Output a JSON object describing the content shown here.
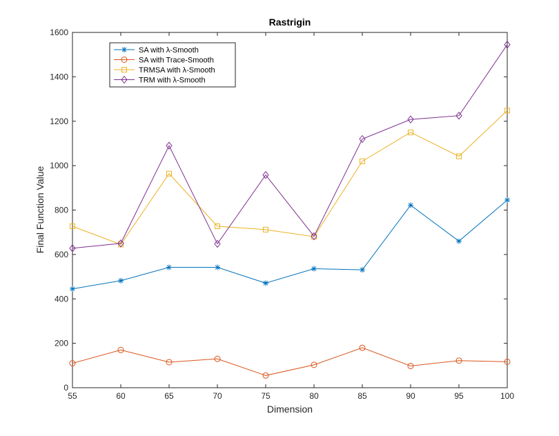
{
  "chart_data": {
    "type": "line",
    "title": "Rastrigin",
    "xlabel": "Dimension",
    "ylabel": "Final Function Value",
    "x": [
      55,
      60,
      65,
      70,
      75,
      80,
      85,
      90,
      95,
      100
    ],
    "xlim": [
      55,
      100
    ],
    "ylim": [
      0,
      1600
    ],
    "xticks": [
      "55",
      "60",
      "65",
      "70",
      "75",
      "80",
      "85",
      "90",
      "95",
      "100"
    ],
    "yticks": [
      "0",
      "200",
      "400",
      "600",
      "800",
      "1000",
      "1200",
      "1400",
      "1600"
    ],
    "grid": false,
    "legend_position": "top-left",
    "series": [
      {
        "name": "SA with λ-Smooth",
        "color": "#0072BD",
        "marker": "asterisk",
        "values": [
          445,
          482,
          542,
          542,
          471,
          536,
          531,
          822,
          660,
          845
        ]
      },
      {
        "name": "SA with Trace-Smooth",
        "color": "#D95319",
        "marker": "circle",
        "values": [
          110,
          170,
          115,
          130,
          55,
          103,
          180,
          98,
          122,
          117
        ]
      },
      {
        "name": "TRMSA with λ-Smooth",
        "color": "#EDB120",
        "marker": "square",
        "values": [
          727,
          645,
          964,
          727,
          712,
          680,
          1020,
          1150,
          1042,
          1248
        ]
      },
      {
        "name": "TRM with λ-Smooth",
        "color": "#7E2F8E",
        "marker": "diamond",
        "values": [
          628,
          650,
          1090,
          648,
          958,
          682,
          1120,
          1208,
          1225,
          1545
        ]
      }
    ]
  }
}
